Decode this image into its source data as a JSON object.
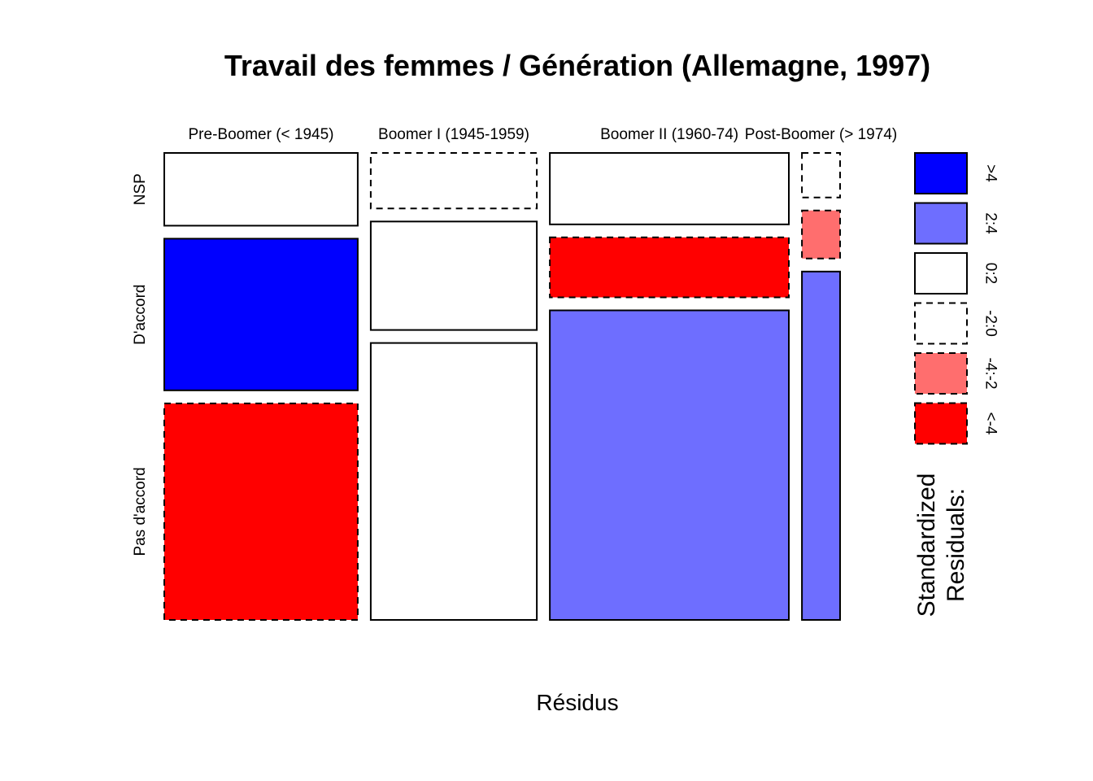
{
  "chart_data": {
    "type": "mosaic",
    "title": "Travail des femmes / Génération (Allemagne, 1997)",
    "xlabel": "Résidus",
    "columns": [
      {
        "label": "Pre-Boomer (< 1945)",
        "width_share": 0.289
      },
      {
        "label": "Boomer I (1945-1959)",
        "width_share": 0.248
      },
      {
        "label": "Boomer II (1960-74)",
        "width_share": 0.357
      },
      {
        "label": "Post-Boomer (> 1974)",
        "width_share": 0.057
      }
    ],
    "rows": [
      "NSP",
      "D'accord",
      "Pas d'accord"
    ],
    "row_axis_labels": [
      {
        "label": "NSP",
        "share": 0.165
      },
      {
        "label": "D'accord",
        "share": 0.344
      },
      {
        "label": "Pas d'accord",
        "share": 0.491
      }
    ],
    "cells": [
      {
        "column": "Pre-Boomer (< 1945)",
        "proportions": [
          0.165,
          0.344,
          0.491
        ],
        "residual_class": [
          "0:2",
          ">4",
          "<-4"
        ]
      },
      {
        "column": "Boomer I (1945-1959)",
        "proportions": [
          0.126,
          0.246,
          0.628
        ],
        "residual_class": [
          "-2:0",
          "0:2",
          "0:2"
        ]
      },
      {
        "column": "Boomer II (1960-74)",
        "proportions": [
          0.162,
          0.136,
          0.702
        ],
        "residual_class": [
          "0:2",
          "<-4",
          "2:4"
        ]
      },
      {
        "column": "Post-Boomer (> 1974)",
        "proportions": [
          0.101,
          0.109,
          0.79
        ],
        "residual_class": [
          "-2:0",
          "-4:-2",
          "2:4"
        ]
      }
    ],
    "legend": {
      "title": [
        "Standardized",
        "Residuals:"
      ],
      "placement": "right",
      "items": [
        {
          "label": ">4",
          "color": "#0000ff",
          "dashed": false
        },
        {
          "label": "2:4",
          "color": "#6e6eff",
          "dashed": false
        },
        {
          "label": "0:2",
          "color": "#ffffff",
          "dashed": false
        },
        {
          "label": "-2:0",
          "color": "#ffffff",
          "dashed": true
        },
        {
          "label": "-4:-2",
          "color": "#ff6e6e",
          "dashed": true
        },
        {
          "label": "<-4",
          "color": "#ff0000",
          "dashed": true
        }
      ]
    }
  }
}
